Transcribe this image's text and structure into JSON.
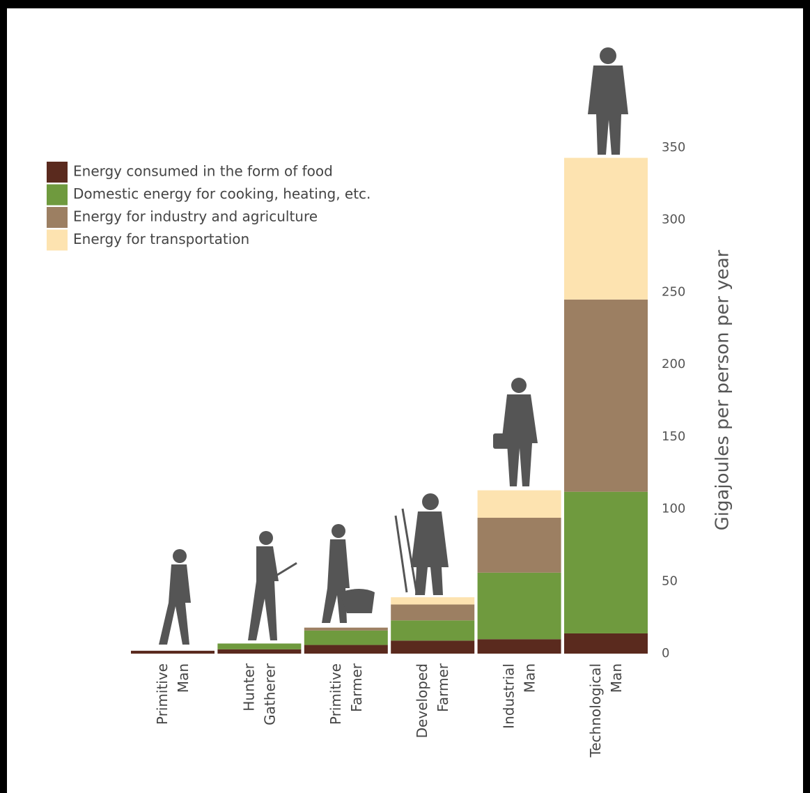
{
  "chart_data": {
    "type": "stacked_bar",
    "y_label": "Gigajoules per person per year",
    "categories": [
      "Primitive Man",
      "Hunter Gatherer",
      "Primitive Farmer",
      "Developed Farmer",
      "Industrial Man",
      "Technological Man"
    ],
    "series": [
      {
        "name": "Energy consumed in the form of food",
        "color": "#5a2a1e",
        "values": [
          2,
          3,
          6,
          9,
          10,
          14
        ]
      },
      {
        "name": "Domestic energy for cooking, heating, etc.",
        "color": "#6f9a3e",
        "values": [
          0,
          4,
          10,
          14,
          46,
          98
        ]
      },
      {
        "name": "Energy for industry and agriculture",
        "color": "#9c7f62",
        "values": [
          0,
          0,
          2,
          11,
          38,
          133
        ]
      },
      {
        "name": "Energy for transportation",
        "color": "#fde3b0",
        "values": [
          0,
          0,
          0,
          5,
          19,
          98
        ]
      }
    ],
    "ylim": [
      0,
      350
    ],
    "yticks": [
      0,
      50,
      100,
      150,
      200,
      250,
      300,
      350
    ],
    "grid": false
  }
}
